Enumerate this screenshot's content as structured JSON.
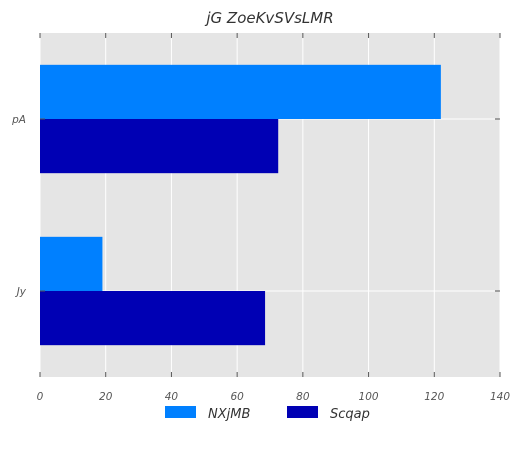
{
  "chart_data": {
    "type": "bar",
    "orientation": "horizontal",
    "title": "jG ZoeKvSVsLMR",
    "xlabel": "",
    "ylabel": "",
    "categories": [
      "pA",
      "Jy"
    ],
    "series": [
      {
        "name": "NXjMB",
        "color": "#0080ff",
        "values": [
          122,
          19
        ]
      },
      {
        "name": "Scqap",
        "color": "#0000b4",
        "values": [
          72.5,
          68.5
        ]
      }
    ],
    "xlim": [
      0,
      140
    ],
    "xticks": [
      "0",
      "20",
      "40",
      "60",
      "80",
      "100",
      "120",
      "140"
    ],
    "grid": true,
    "background": "#e5e5e5",
    "legend_position": "bottom-center"
  }
}
